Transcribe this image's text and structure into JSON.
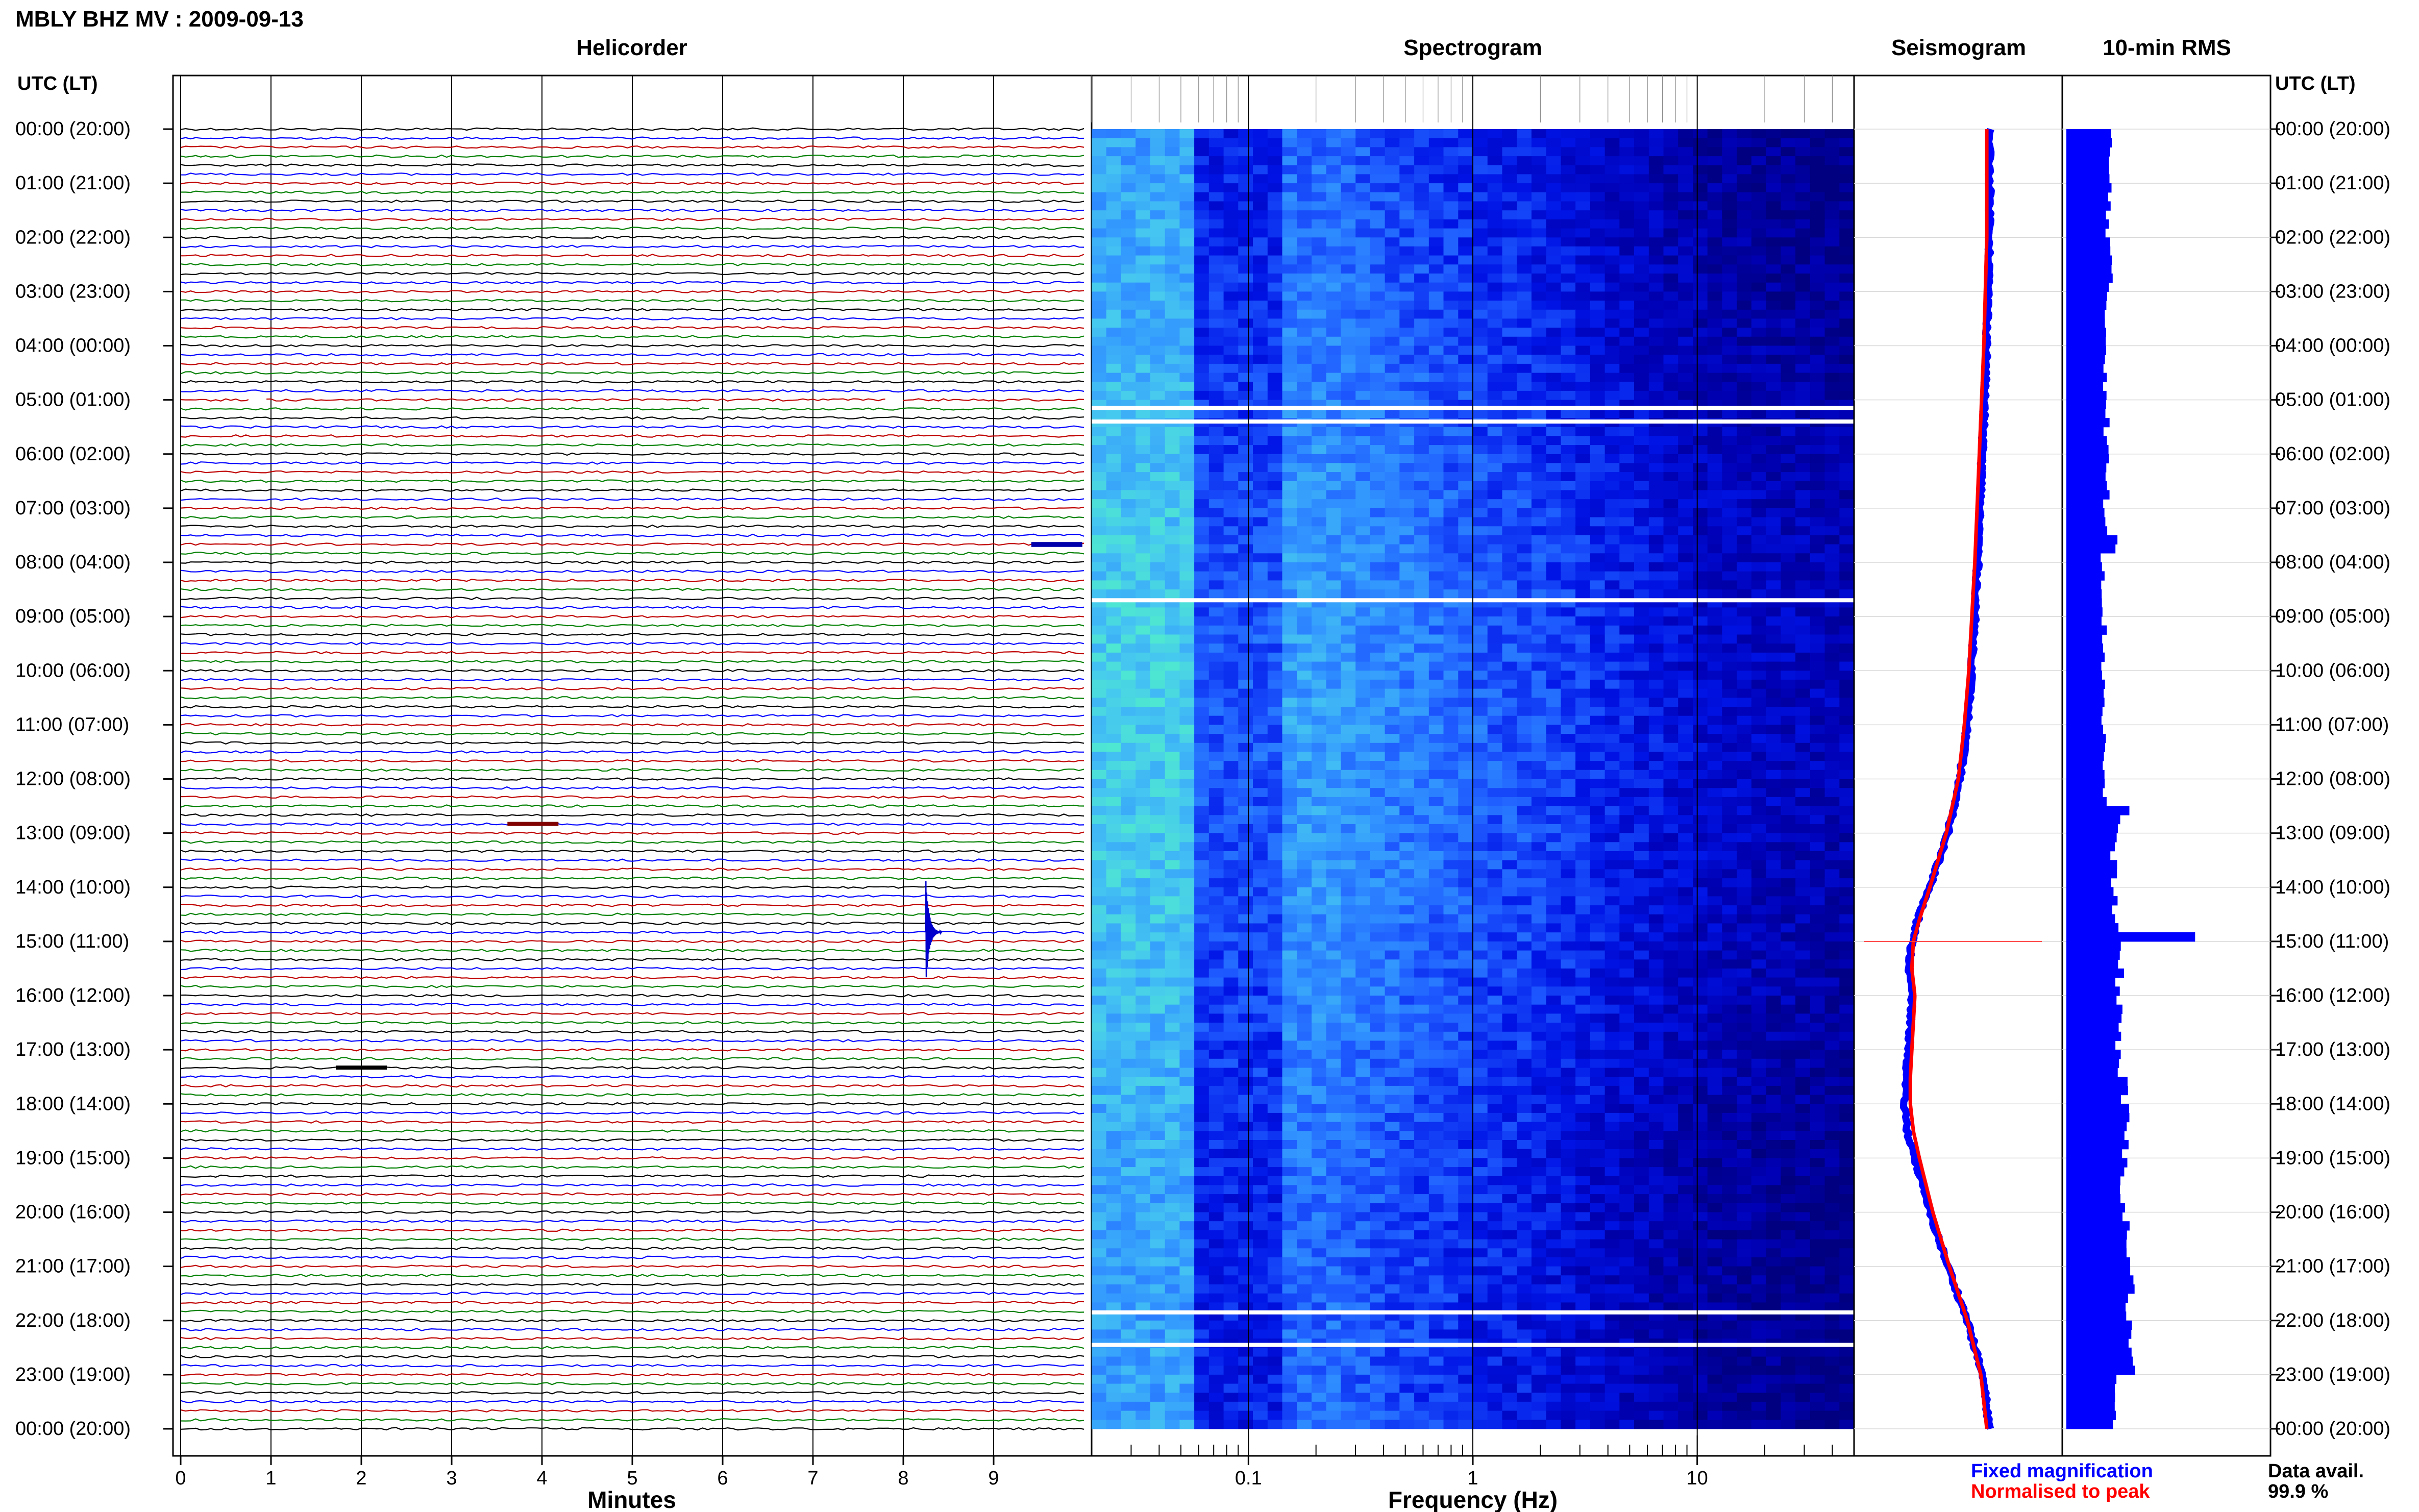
{
  "title": "MBLY BHZ MV : 2009-09-13",
  "panels": {
    "helicorder": "Helicorder",
    "spectrogram": "Spectrogram",
    "seismogram": "Seismogram",
    "rms": "10-min RMS"
  },
  "axis_header_left": "UTC (LT)",
  "axis_header_right": "UTC (LT)",
  "time_labels": [
    "00:00 (20:00)",
    "01:00 (21:00)",
    "02:00 (22:00)",
    "03:00 (23:00)",
    "04:00 (00:00)",
    "05:00 (01:00)",
    "06:00 (02:00)",
    "07:00 (03:00)",
    "08:00 (04:00)",
    "09:00 (05:00)",
    "10:00 (06:00)",
    "11:00 (07:00)",
    "12:00 (08:00)",
    "13:00 (09:00)",
    "14:00 (10:00)",
    "15:00 (11:00)",
    "16:00 (12:00)",
    "17:00 (13:00)",
    "18:00 (14:00)",
    "19:00 (15:00)",
    "20:00 (16:00)",
    "21:00 (17:00)",
    "22:00 (18:00)",
    "23:00 (19:00)",
    "00:00 (20:00)"
  ],
  "legend": {
    "fixed": "Fixed magnification",
    "normalised": "Normalised to peak",
    "fixed_color": "#0000ff",
    "normalised_color": "#ff0000"
  },
  "data_avail": {
    "label": "Data avail.",
    "value": "99.9 %"
  },
  "chart_data": [
    {
      "type": "line",
      "panel": "helicorder",
      "xlabel": "Minutes",
      "xlim": [
        0,
        10
      ],
      "xticks": [
        "0",
        "1",
        "2",
        "3",
        "4",
        "5",
        "6",
        "7",
        "8",
        "9"
      ],
      "ylim_hours": [
        0,
        24
      ],
      "rows": 144,
      "trace_colors": [
        "#000000",
        "#0000ff",
        "#c00000",
        "#008000"
      ],
      "events": [
        {
          "hour": 14.83,
          "minute": 8.25,
          "color": "#0000cc",
          "amplitude": 5
        },
        {
          "hour": 7.67,
          "minute": 9.7,
          "color": "#0000aa",
          "amplitude": 1.2
        },
        {
          "hour": 12.83,
          "minute": 3.9,
          "color": "#800000",
          "amplitude": 1
        },
        {
          "hour": 17.33,
          "minute": 2.0,
          "color": "#000000",
          "amplitude": 1
        }
      ],
      "gaps": [
        {
          "hour": 5.0,
          "minute_start": 0.75,
          "minute_end": 0.95
        },
        {
          "hour": 5.0,
          "minute_start": 7.8,
          "minute_end": 8.0
        },
        {
          "hour": 5.17,
          "minute_start": 5.85,
          "minute_end": 5.95
        }
      ]
    },
    {
      "type": "heatmap",
      "panel": "spectrogram",
      "xlabel": "Frequency (Hz)",
      "xscale": "log",
      "xlim": [
        0.02,
        50
      ],
      "xticks": [
        0.1,
        1,
        10
      ],
      "xtick_labels": [
        "0.1",
        "1",
        "10"
      ],
      "ylim_hours": [
        0,
        24
      ],
      "colormap": [
        "#000080",
        "#0000b4",
        "#0014e6",
        "#1e5aff",
        "#3296ff",
        "#46c8f0",
        "#50f0c8"
      ],
      "white_gap_hours": [
        5.15,
        5.4,
        8.7,
        21.85,
        22.45
      ]
    },
    {
      "type": "line",
      "panel": "seismogram",
      "ylim_hours": [
        0,
        24
      ],
      "series": [
        {
          "name": "Fixed magnification",
          "color": "#0000ff",
          "hours": [
            0,
            2,
            4,
            6,
            8,
            10,
            11,
            12,
            13,
            14,
            14.6,
            15.0,
            15.5,
            16.0,
            17.0,
            17.5,
            18.0,
            18.5,
            19.0,
            20.0,
            21.0,
            22.0,
            23.0,
            24.0
          ],
          "values": [
            0.6,
            0.6,
            0.58,
            0.55,
            0.52,
            0.48,
            0.45,
            0.4,
            0.32,
            0.2,
            0.12,
            0.08,
            0.06,
            0.08,
            0.06,
            0.04,
            0.03,
            0.05,
            0.1,
            0.2,
            0.32,
            0.45,
            0.55,
            0.6
          ]
        },
        {
          "name": "Normalised to peak",
          "color": "#ff0000",
          "hours": [
            0,
            2,
            4,
            6,
            8,
            10,
            11,
            12,
            13,
            14,
            14.6,
            15.0,
            15.5,
            16.0,
            17.0,
            17.5,
            18.0,
            18.5,
            19.0,
            20.0,
            21.0,
            22.0,
            23.0,
            24.0
          ],
          "values": [
            0.58,
            0.58,
            0.56,
            0.53,
            0.5,
            0.46,
            0.43,
            0.39,
            0.31,
            0.2,
            0.13,
            0.09,
            0.08,
            0.1,
            0.08,
            0.07,
            0.07,
            0.09,
            0.13,
            0.22,
            0.33,
            0.45,
            0.54,
            0.58
          ]
        }
      ],
      "spike_hour": 15.0
    },
    {
      "type": "bar",
      "panel": "rms",
      "orientation": "horizontal",
      "bin_minutes": 10,
      "color": "#0000ff",
      "segments": [
        {
          "start_hour": 0,
          "end_hour": 3,
          "value": 0.9
        },
        {
          "start_hour": 3,
          "end_hour": 7.5,
          "value": 0.85
        },
        {
          "start_hour": 7.5,
          "end_hour": 7.83,
          "value": 1.1
        },
        {
          "start_hour": 7.83,
          "end_hour": 12.5,
          "value": 0.8
        },
        {
          "start_hour": 12.5,
          "end_hour": 12.83,
          "value": 1.2
        },
        {
          "start_hour": 12.83,
          "end_hour": 14.83,
          "value": 1.0
        },
        {
          "start_hour": 14.83,
          "end_hour": 15.0,
          "value": 2.6
        },
        {
          "start_hour": 15.0,
          "end_hour": 17.5,
          "value": 1.1
        },
        {
          "start_hour": 17.5,
          "end_hour": 20.5,
          "value": 1.2
        },
        {
          "start_hour": 20.5,
          "end_hour": 23.0,
          "value": 1.3
        },
        {
          "start_hour": 23.0,
          "end_hour": 24.0,
          "value": 1.0
        }
      ]
    }
  ]
}
